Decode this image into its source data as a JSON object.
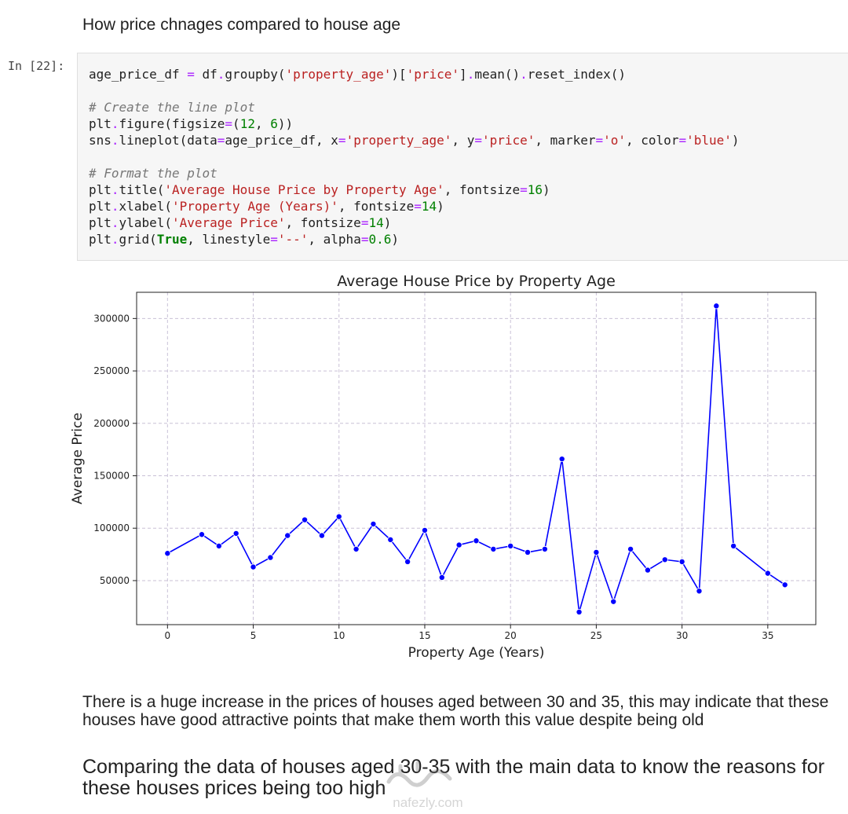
{
  "heading": "How price chnages compared to house age",
  "cell": {
    "prompt": "In [22]:",
    "code_lines": [
      [
        [
          "t",
          "age_price_df "
        ],
        [
          "o",
          "="
        ],
        [
          "t",
          " df"
        ],
        [
          "o",
          "."
        ],
        [
          "t",
          "groupby("
        ],
        [
          "s",
          "'property_age'"
        ],
        [
          "t",
          ")["
        ],
        [
          "s",
          "'price'"
        ],
        [
          "t",
          "]"
        ],
        [
          "o",
          "."
        ],
        [
          "t",
          "mean()"
        ],
        [
          "o",
          "."
        ],
        [
          "t",
          "reset_index()"
        ]
      ],
      [],
      [
        [
          "c",
          "# Create the line plot"
        ]
      ],
      [
        [
          "t",
          "plt"
        ],
        [
          "o",
          "."
        ],
        [
          "t",
          "figure(figsize"
        ],
        [
          "o",
          "="
        ],
        [
          "t",
          "("
        ],
        [
          "n",
          "12"
        ],
        [
          "t",
          ", "
        ],
        [
          "n",
          "6"
        ],
        [
          "t",
          "))"
        ]
      ],
      [
        [
          "t",
          "sns"
        ],
        [
          "o",
          "."
        ],
        [
          "t",
          "lineplot(data"
        ],
        [
          "o",
          "="
        ],
        [
          "t",
          "age_price_df, x"
        ],
        [
          "o",
          "="
        ],
        [
          "s",
          "'property_age'"
        ],
        [
          "t",
          ", y"
        ],
        [
          "o",
          "="
        ],
        [
          "s",
          "'price'"
        ],
        [
          "t",
          ", marker"
        ],
        [
          "o",
          "="
        ],
        [
          "s",
          "'o'"
        ],
        [
          "t",
          ", color"
        ],
        [
          "o",
          "="
        ],
        [
          "s",
          "'blue'"
        ],
        [
          "t",
          ")"
        ]
      ],
      [],
      [
        [
          "c",
          "# Format the plot"
        ]
      ],
      [
        [
          "t",
          "plt"
        ],
        [
          "o",
          "."
        ],
        [
          "t",
          "title("
        ],
        [
          "s",
          "'Average House Price by Property Age'"
        ],
        [
          "t",
          ", fontsize"
        ],
        [
          "o",
          "="
        ],
        [
          "n",
          "16"
        ],
        [
          "t",
          ")"
        ]
      ],
      [
        [
          "t",
          "plt"
        ],
        [
          "o",
          "."
        ],
        [
          "t",
          "xlabel("
        ],
        [
          "s",
          "'Property Age (Years)'"
        ],
        [
          "t",
          ", fontsize"
        ],
        [
          "o",
          "="
        ],
        [
          "n",
          "14"
        ],
        [
          "t",
          ")"
        ]
      ],
      [
        [
          "t",
          "plt"
        ],
        [
          "o",
          "."
        ],
        [
          "t",
          "ylabel("
        ],
        [
          "s",
          "'Average Price'"
        ],
        [
          "t",
          ", fontsize"
        ],
        [
          "o",
          "="
        ],
        [
          "n",
          "14"
        ],
        [
          "t",
          ")"
        ]
      ],
      [
        [
          "t",
          "plt"
        ],
        [
          "o",
          "."
        ],
        [
          "t",
          "grid("
        ],
        [
          "k",
          "True"
        ],
        [
          "t",
          ", linestyle"
        ],
        [
          "o",
          "="
        ],
        [
          "s",
          "'--'"
        ],
        [
          "t",
          ", alpha"
        ],
        [
          "o",
          "="
        ],
        [
          "n",
          "0.6"
        ],
        [
          "t",
          ")"
        ]
      ]
    ]
  },
  "chart_data": {
    "type": "line",
    "title": "Average House Price by Property Age",
    "xlabel": "Property Age (Years)",
    "ylabel": "Average Price",
    "xlim": [
      -1.8,
      37.8
    ],
    "ylim": [
      8000,
      325000
    ],
    "xticks": [
      0,
      5,
      10,
      15,
      20,
      25,
      30,
      35
    ],
    "yticks": [
      50000,
      100000,
      150000,
      200000,
      250000,
      300000
    ],
    "grid": true,
    "color": "#0000ff",
    "x": [
      0,
      2,
      3,
      4,
      5,
      6,
      7,
      8,
      9,
      10,
      11,
      12,
      13,
      14,
      15,
      16,
      17,
      18,
      19,
      20,
      21,
      22,
      23,
      24,
      25,
      26,
      27,
      28,
      29,
      30,
      31,
      32,
      33,
      35,
      36
    ],
    "y": [
      76000,
      94000,
      83000,
      95000,
      63000,
      72000,
      93000,
      108000,
      93000,
      111000,
      80000,
      104000,
      89000,
      68000,
      98000,
      53000,
      84000,
      88000,
      80000,
      83000,
      77000,
      80000,
      166000,
      20000,
      77000,
      30000,
      80000,
      60000,
      70000,
      68000,
      40000,
      312000,
      83000,
      57000,
      46000
    ]
  },
  "paragraph": [
    "There is a huge increase in the prices of houses aged between 30 and 35, this may indicate that these",
    "houses have good attractive points that make them worth this value despite being old"
  ],
  "subheading": [
    "Comparing the data of houses aged 30-35 with the main data to know the reasons for",
    "these houses prices being too high"
  ],
  "watermark": {
    "brand": "nafezly.com"
  }
}
